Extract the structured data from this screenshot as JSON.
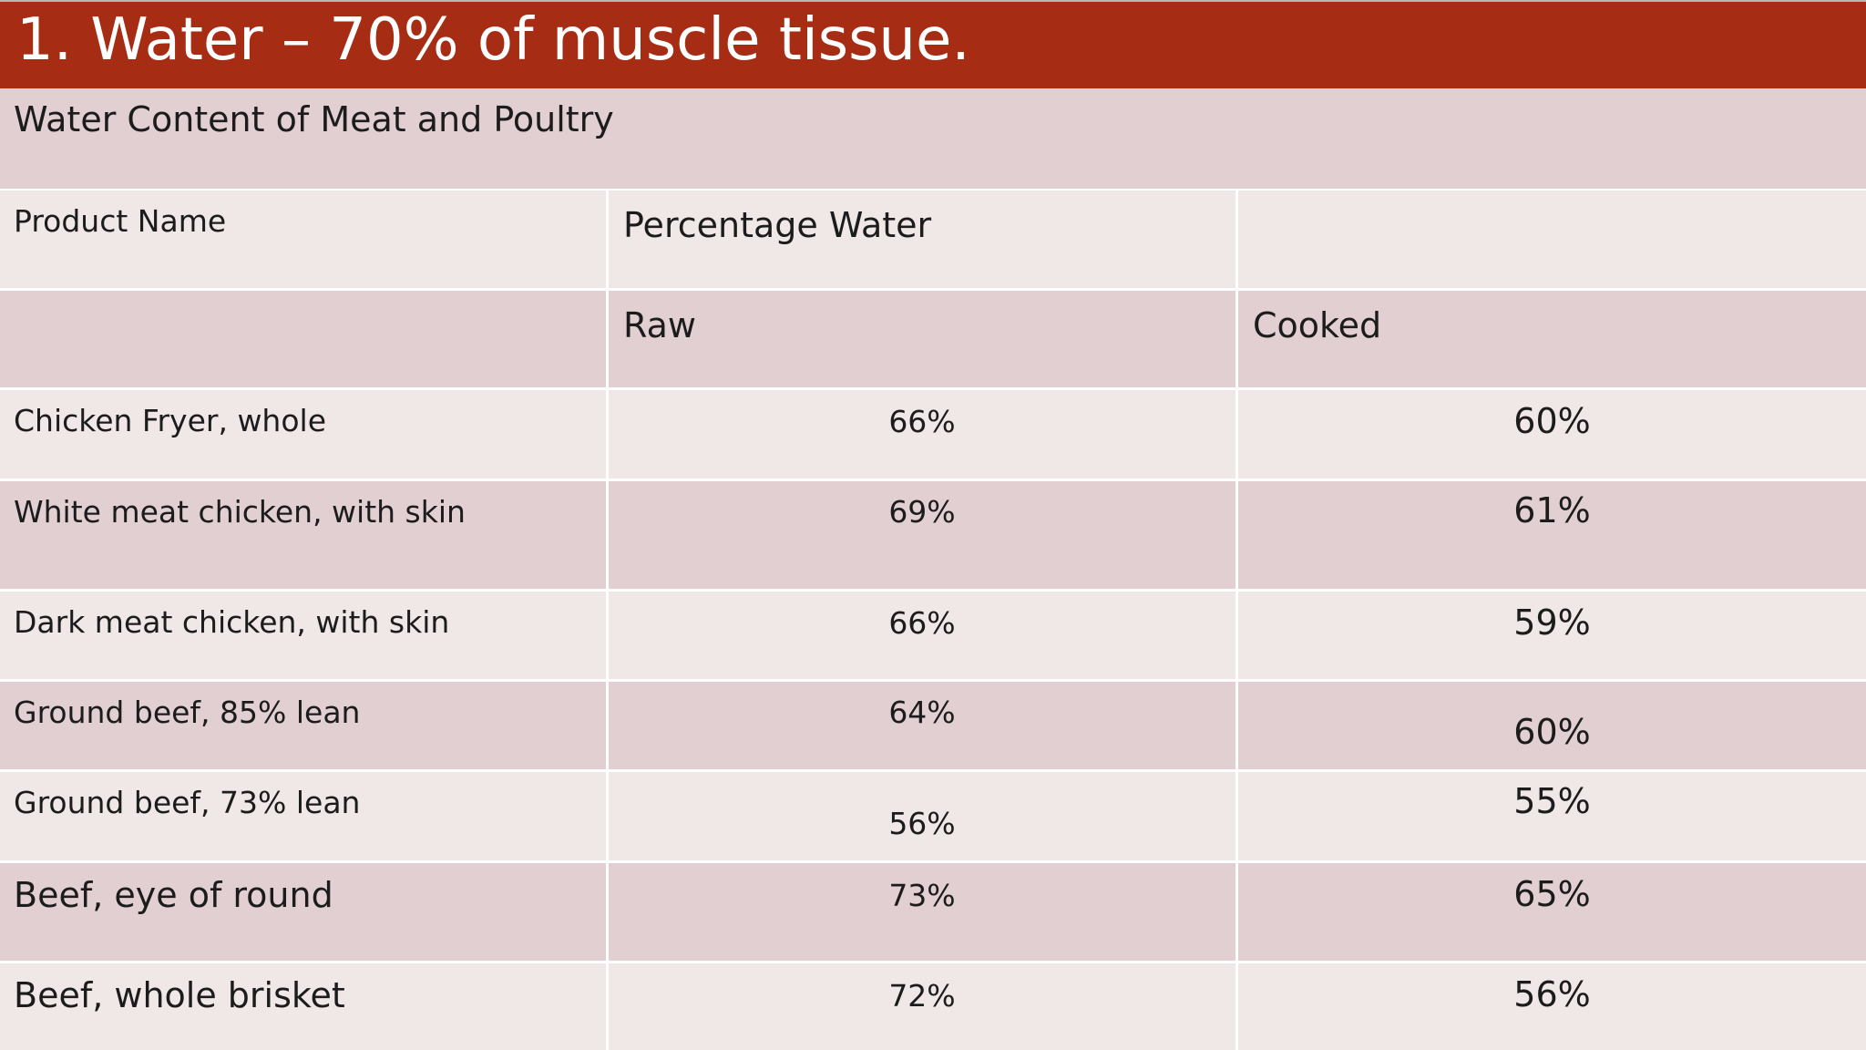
{
  "slide": {
    "title": "1. Water – 70% of muscle tissue."
  },
  "table": {
    "caption": "Water Content of Meat and Poultry",
    "header_product": "Product Name",
    "header_percentage": "Percentage Water",
    "header_blank": "",
    "sub_blank": "",
    "sub_raw": "Raw",
    "sub_cooked": "Cooked",
    "rows": [
      {
        "name": "Chicken Fryer, whole",
        "raw": "66%",
        "cooked": "60%"
      },
      {
        "name": "White meat chicken, with skin",
        "raw": "69%",
        "cooked": "61%"
      },
      {
        "name": "Dark meat chicken, with skin",
        "raw": "66%",
        "cooked": "59%"
      },
      {
        "name": "Ground beef, 85% lean",
        "raw": "64%",
        "cooked": "60%"
      },
      {
        "name": "Ground beef, 73% lean",
        "raw": "56%",
        "cooked": "55%"
      },
      {
        "name": "Beef, eye of round",
        "raw": "73%",
        "cooked": "65%"
      },
      {
        "name": "Beef, whole brisket",
        "raw": "72%",
        "cooked": "56%"
      }
    ]
  }
}
